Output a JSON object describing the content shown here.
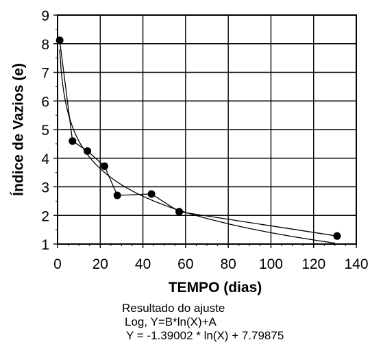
{
  "chart_data": {
    "type": "scatter",
    "title": "",
    "xlabel": "TEMPO (dias)",
    "ylabel": "Índice de Vazios (e)",
    "xlim": [
      0,
      140
    ],
    "ylim": [
      1,
      9
    ],
    "x_ticks": [
      "0",
      "20",
      "40",
      "60",
      "80",
      "100",
      "120",
      "140"
    ],
    "y_ticks": [
      "1",
      "2",
      "3",
      "4",
      "5",
      "6",
      "7",
      "8",
      "9"
    ],
    "grid": true,
    "series": [
      {
        "points": [
          {
            "x": 1,
            "y": 8.12
          },
          {
            "x": 7,
            "y": 4.6
          },
          {
            "x": 14,
            "y": 4.25
          },
          {
            "x": 22,
            "y": 3.72
          },
          {
            "x": 28,
            "y": 2.7
          },
          {
            "x": 44,
            "y": 2.75
          },
          {
            "x": 57,
            "y": 2.13
          },
          {
            "x": 131,
            "y": 1.28
          }
        ]
      }
    ],
    "fit": {
      "model": "log",
      "B": -1.39002,
      "A": 7.79875,
      "x_from": 1,
      "x_to": 130
    },
    "fit_text": [
      "Resultado do ajuste",
      "Log, Y=B*ln(X)+A",
      "Y = -1.39002 * ln(X) + 7.79875"
    ]
  }
}
